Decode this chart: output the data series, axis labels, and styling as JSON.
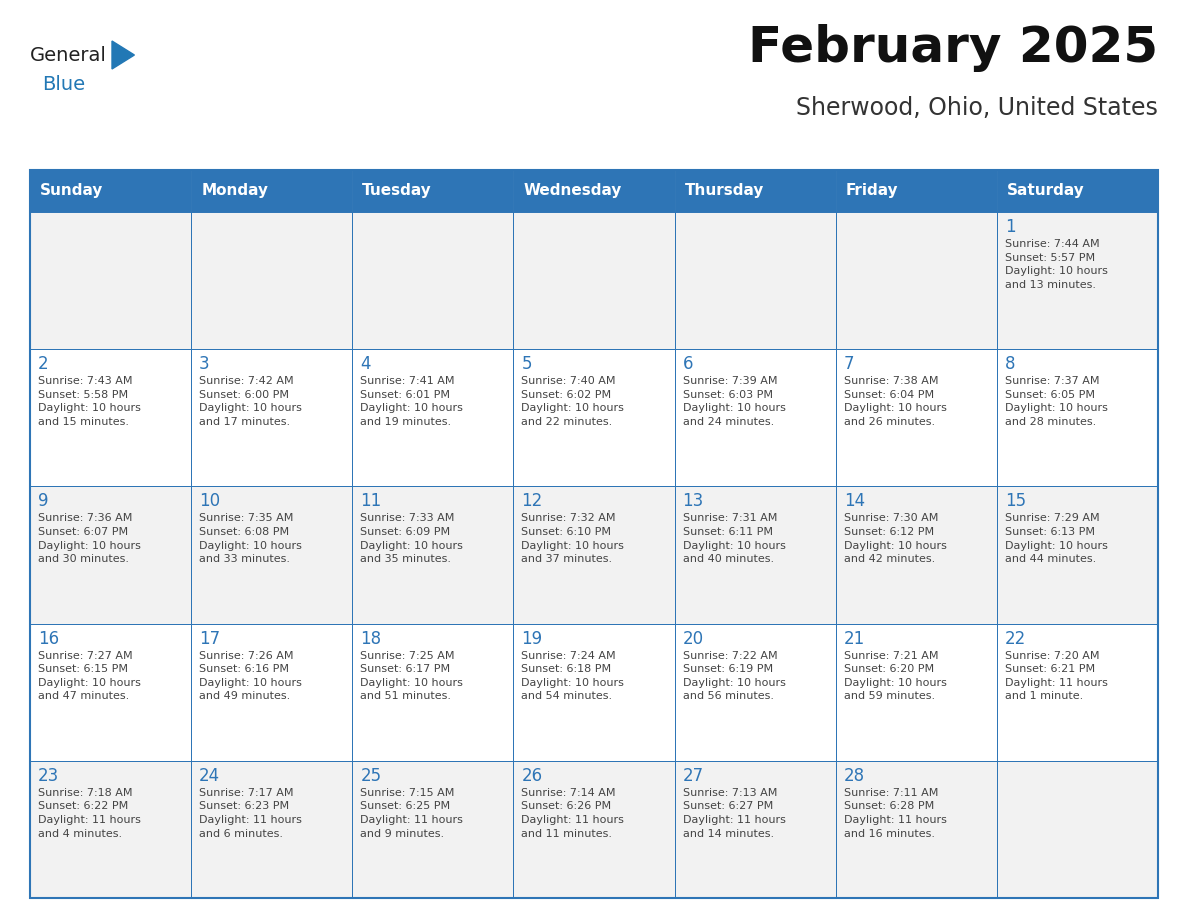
{
  "title": "February 2025",
  "subtitle": "Sherwood, Ohio, United States",
  "header_bg_color": "#2E75B6",
  "header_text_color": "#FFFFFF",
  "cell_bg_color": "#FFFFFF",
  "cell_alt_bg_color": "#F2F2F2",
  "border_color": "#2E75B6",
  "day_number_color": "#2E75B6",
  "cell_text_color": "#444444",
  "background_color": "#FFFFFF",
  "title_color": "#111111",
  "subtitle_color": "#333333",
  "days_of_week": [
    "Sunday",
    "Monday",
    "Tuesday",
    "Wednesday",
    "Thursday",
    "Friday",
    "Saturday"
  ],
  "weeks": [
    [
      {
        "day": "",
        "info": ""
      },
      {
        "day": "",
        "info": ""
      },
      {
        "day": "",
        "info": ""
      },
      {
        "day": "",
        "info": ""
      },
      {
        "day": "",
        "info": ""
      },
      {
        "day": "",
        "info": ""
      },
      {
        "day": "1",
        "info": "Sunrise: 7:44 AM\nSunset: 5:57 PM\nDaylight: 10 hours\nand 13 minutes."
      }
    ],
    [
      {
        "day": "2",
        "info": "Sunrise: 7:43 AM\nSunset: 5:58 PM\nDaylight: 10 hours\nand 15 minutes."
      },
      {
        "day": "3",
        "info": "Sunrise: 7:42 AM\nSunset: 6:00 PM\nDaylight: 10 hours\nand 17 minutes."
      },
      {
        "day": "4",
        "info": "Sunrise: 7:41 AM\nSunset: 6:01 PM\nDaylight: 10 hours\nand 19 minutes."
      },
      {
        "day": "5",
        "info": "Sunrise: 7:40 AM\nSunset: 6:02 PM\nDaylight: 10 hours\nand 22 minutes."
      },
      {
        "day": "6",
        "info": "Sunrise: 7:39 AM\nSunset: 6:03 PM\nDaylight: 10 hours\nand 24 minutes."
      },
      {
        "day": "7",
        "info": "Sunrise: 7:38 AM\nSunset: 6:04 PM\nDaylight: 10 hours\nand 26 minutes."
      },
      {
        "day": "8",
        "info": "Sunrise: 7:37 AM\nSunset: 6:05 PM\nDaylight: 10 hours\nand 28 minutes."
      }
    ],
    [
      {
        "day": "9",
        "info": "Sunrise: 7:36 AM\nSunset: 6:07 PM\nDaylight: 10 hours\nand 30 minutes."
      },
      {
        "day": "10",
        "info": "Sunrise: 7:35 AM\nSunset: 6:08 PM\nDaylight: 10 hours\nand 33 minutes."
      },
      {
        "day": "11",
        "info": "Sunrise: 7:33 AM\nSunset: 6:09 PM\nDaylight: 10 hours\nand 35 minutes."
      },
      {
        "day": "12",
        "info": "Sunrise: 7:32 AM\nSunset: 6:10 PM\nDaylight: 10 hours\nand 37 minutes."
      },
      {
        "day": "13",
        "info": "Sunrise: 7:31 AM\nSunset: 6:11 PM\nDaylight: 10 hours\nand 40 minutes."
      },
      {
        "day": "14",
        "info": "Sunrise: 7:30 AM\nSunset: 6:12 PM\nDaylight: 10 hours\nand 42 minutes."
      },
      {
        "day": "15",
        "info": "Sunrise: 7:29 AM\nSunset: 6:13 PM\nDaylight: 10 hours\nand 44 minutes."
      }
    ],
    [
      {
        "day": "16",
        "info": "Sunrise: 7:27 AM\nSunset: 6:15 PM\nDaylight: 10 hours\nand 47 minutes."
      },
      {
        "day": "17",
        "info": "Sunrise: 7:26 AM\nSunset: 6:16 PM\nDaylight: 10 hours\nand 49 minutes."
      },
      {
        "day": "18",
        "info": "Sunrise: 7:25 AM\nSunset: 6:17 PM\nDaylight: 10 hours\nand 51 minutes."
      },
      {
        "day": "19",
        "info": "Sunrise: 7:24 AM\nSunset: 6:18 PM\nDaylight: 10 hours\nand 54 minutes."
      },
      {
        "day": "20",
        "info": "Sunrise: 7:22 AM\nSunset: 6:19 PM\nDaylight: 10 hours\nand 56 minutes."
      },
      {
        "day": "21",
        "info": "Sunrise: 7:21 AM\nSunset: 6:20 PM\nDaylight: 10 hours\nand 59 minutes."
      },
      {
        "day": "22",
        "info": "Sunrise: 7:20 AM\nSunset: 6:21 PM\nDaylight: 11 hours\nand 1 minute."
      }
    ],
    [
      {
        "day": "23",
        "info": "Sunrise: 7:18 AM\nSunset: 6:22 PM\nDaylight: 11 hours\nand 4 minutes."
      },
      {
        "day": "24",
        "info": "Sunrise: 7:17 AM\nSunset: 6:23 PM\nDaylight: 11 hours\nand 6 minutes."
      },
      {
        "day": "25",
        "info": "Sunrise: 7:15 AM\nSunset: 6:25 PM\nDaylight: 11 hours\nand 9 minutes."
      },
      {
        "day": "26",
        "info": "Sunrise: 7:14 AM\nSunset: 6:26 PM\nDaylight: 11 hours\nand 11 minutes."
      },
      {
        "day": "27",
        "info": "Sunrise: 7:13 AM\nSunset: 6:27 PM\nDaylight: 11 hours\nand 14 minutes."
      },
      {
        "day": "28",
        "info": "Sunrise: 7:11 AM\nSunset: 6:28 PM\nDaylight: 11 hours\nand 16 minutes."
      },
      {
        "day": "",
        "info": ""
      }
    ]
  ],
  "logo_general_color": "#222222",
  "logo_blue_color": "#2278B5",
  "logo_triangle_color": "#2278B5"
}
